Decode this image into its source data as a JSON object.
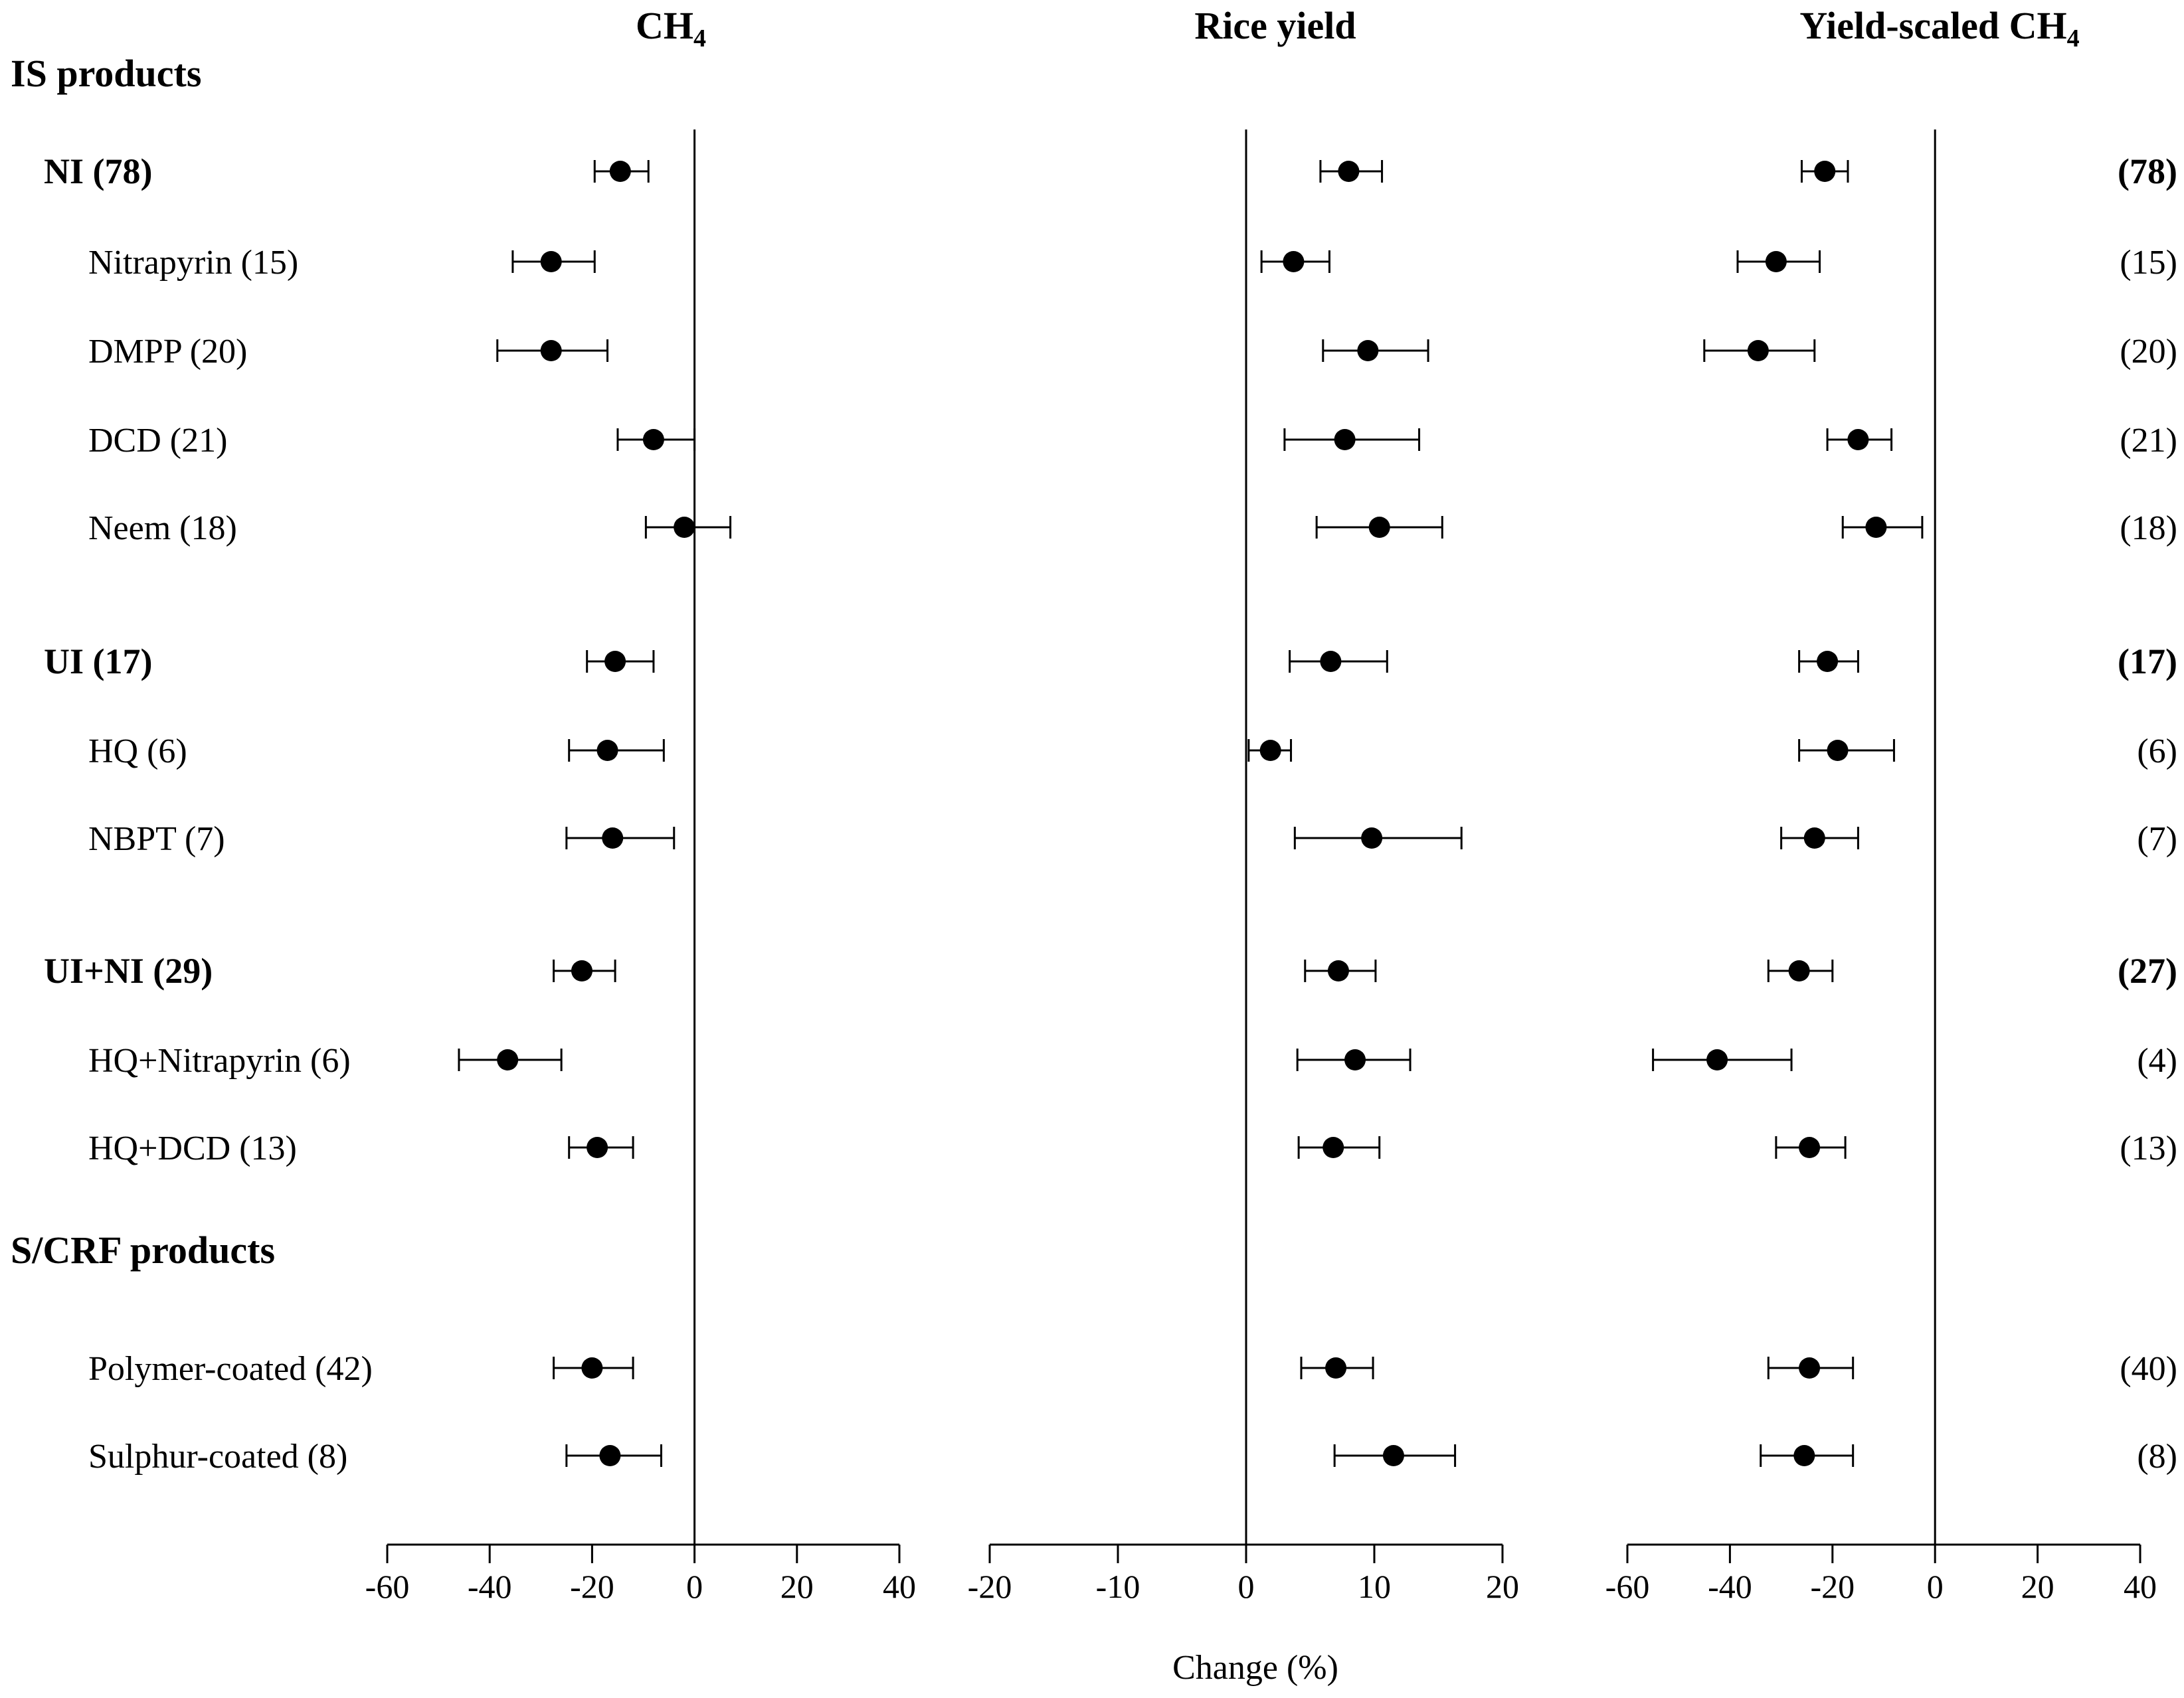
{
  "chart_data": {
    "type": "forest",
    "xlabel": "Change (%)",
    "panels": [
      {
        "id": "ch4",
        "title_main": "CH",
        "title_sub": "4",
        "xlim": [
          -60,
          40
        ],
        "ticks": [
          -60,
          -40,
          -20,
          0,
          20,
          40
        ],
        "tick_labels": [
          "-60",
          "-40",
          "-20",
          "0",
          "20",
          "40"
        ],
        "estimates": [
          -14.5,
          -28,
          -28,
          -8,
          -2,
          -15.5,
          -17,
          -16,
          -22,
          -36.5,
          -19,
          -20,
          -16.5
        ],
        "lower": [
          -19.5,
          -35.5,
          -38.5,
          -15,
          -9.5,
          -21,
          -24.5,
          -25,
          -27.5,
          -46,
          -24.5,
          -27.5,
          -25
        ],
        "upper": [
          -9,
          -19.5,
          -17,
          0,
          7,
          -8,
          -6,
          -4,
          -15.5,
          -26,
          -12,
          -12,
          -6.5
        ]
      },
      {
        "id": "yield",
        "title_main": "Rice yield",
        "title_sub": "",
        "xlim": [
          -20,
          20
        ],
        "ticks": [
          -20,
          -10,
          0,
          10,
          20
        ],
        "tick_labels": [
          "-20",
          "-10",
          "0",
          "10",
          "20"
        ],
        "estimates": [
          8,
          3.7,
          9.5,
          7.7,
          10.4,
          6.6,
          1.9,
          9.8,
          7.2,
          8.5,
          6.8,
          7,
          11.5
        ],
        "lower": [
          5.8,
          1.2,
          6,
          3,
          5.5,
          3.4,
          0.2,
          3.8,
          4.6,
          4,
          4.1,
          4.3,
          6.9
        ],
        "upper": [
          10.6,
          6.5,
          14.2,
          13.5,
          15.3,
          11,
          3.5,
          16.8,
          10.1,
          12.8,
          10.4,
          9.9,
          16.3
        ]
      },
      {
        "id": "ys",
        "title_main": "Yield-scaled CH",
        "title_sub": "4",
        "xlim": [
          -60,
          40
        ],
        "ticks": [
          -60,
          -40,
          -20,
          0,
          20,
          40
        ],
        "tick_labels": [
          "-60",
          "-40",
          "-20",
          "0",
          "20",
          "40"
        ],
        "estimates": [
          -21.5,
          -31,
          -34.5,
          -15,
          -11.5,
          -21,
          -19,
          -23.5,
          -26.5,
          -42.5,
          -24.5,
          -24.5,
          -25.5
        ],
        "lower": [
          -26,
          -38.5,
          -45,
          -21,
          -18,
          -26.5,
          -26.5,
          -30,
          -32.5,
          -55,
          -31,
          -32.5,
          -34
        ],
        "upper": [
          -17,
          -22.5,
          -23.5,
          -8.5,
          -2.5,
          -15,
          -8,
          -15,
          -20,
          -28,
          -17.5,
          -16,
          -16
        ]
      }
    ],
    "rows": [
      {
        "label": "NI (78)",
        "bold": true,
        "ys_n": "(78)"
      },
      {
        "label": "Nitrapyrin (15)",
        "bold": false,
        "ys_n": "(15)"
      },
      {
        "label": "DMPP (20)",
        "bold": false,
        "ys_n": "(20)"
      },
      {
        "label": "DCD (21)",
        "bold": false,
        "ys_n": "(21)"
      },
      {
        "label": "Neem (18)",
        "bold": false,
        "ys_n": "(18)"
      },
      {
        "label": "UI (17)",
        "bold": true,
        "ys_n": "(17)"
      },
      {
        "label": "HQ (6)",
        "bold": false,
        "ys_n": "(6)"
      },
      {
        "label": "NBPT (7)",
        "bold": false,
        "ys_n": "(7)"
      },
      {
        "label": "UI+NI (29)",
        "bold": true,
        "ys_n": "(27)"
      },
      {
        "label": "HQ+Nitrapyrin (6)",
        "bold": false,
        "ys_n": "(4)"
      },
      {
        "label": "HQ+DCD (13)",
        "bold": false,
        "ys_n": "(13)"
      },
      {
        "label": "Polymer-coated (42)",
        "bold": false,
        "ys_n": "(40)"
      },
      {
        "label": "Sulphur-coated (8)",
        "bold": false,
        "ys_n": "(8)"
      }
    ],
    "group_headers": [
      "IS products",
      "S/CRF products"
    ]
  }
}
